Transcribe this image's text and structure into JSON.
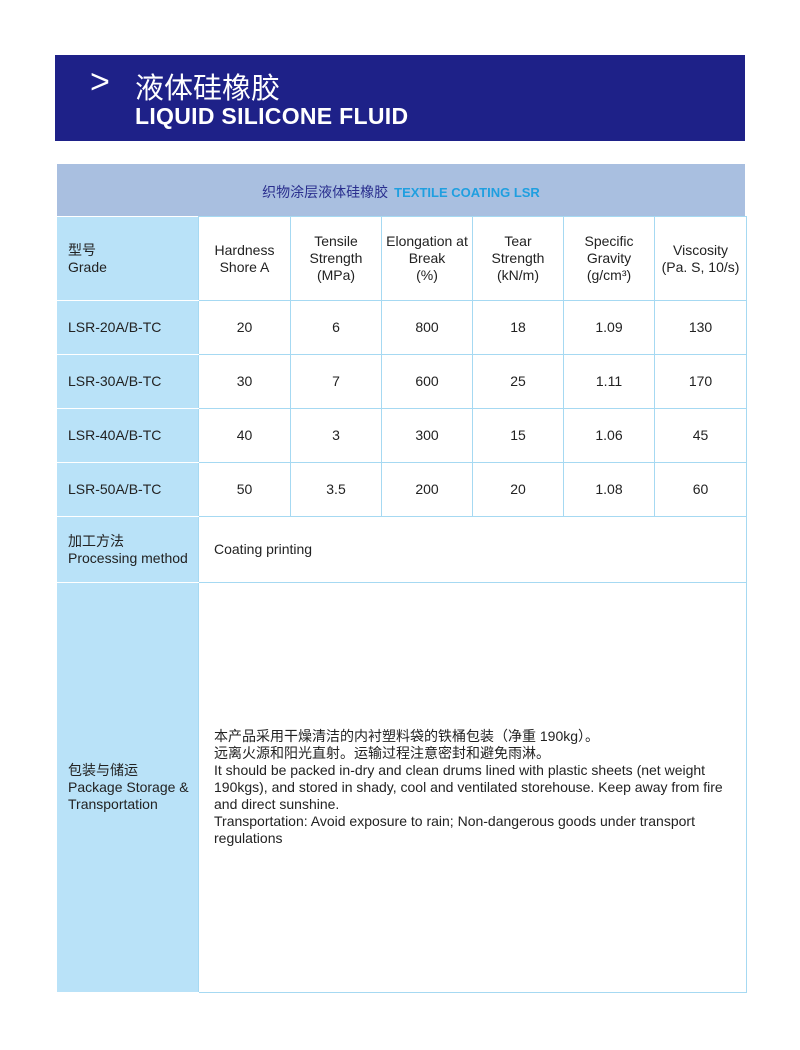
{
  "header": {
    "chevron_icon": "chevron-right",
    "title_cn": "液体硅橡胶",
    "title_en": "LIQUID SILICONE FLUID"
  },
  "section": {
    "title_cn": "织物涂层液体硅橡胶",
    "title_en": "TEXTILE COATING LSR"
  },
  "colors": {
    "banner": "#1e2188",
    "band": "#a9bfe0",
    "label_cell": "#b9e2f8",
    "accent": "#1f9fe0"
  },
  "table": {
    "headers": [
      [
        "型号",
        "Grade"
      ],
      [
        "Hardness",
        "Shore A"
      ],
      [
        "Tensile",
        "Strength",
        "(MPa)"
      ],
      [
        "Elongation at",
        "Break",
        "(%)"
      ],
      [
        "Tear",
        "Strength",
        "(kN/m)"
      ],
      [
        "Specific",
        "Gravity",
        "(g/cm³)"
      ],
      [
        "Viscosity",
        "(Pa. S, 10/s)"
      ]
    ],
    "rows": [
      [
        "LSR-20A/B-TC",
        "20",
        "6",
        "800",
        "18",
        "1.09",
        "130"
      ],
      [
        "LSR-30A/B-TC",
        "30",
        "7",
        "600",
        "25",
        "1.11",
        "170"
      ],
      [
        "LSR-40A/B-TC",
        "40",
        "3",
        "300",
        "15",
        "1.06",
        "45"
      ],
      [
        "LSR-50A/B-TC",
        "50",
        "3.5",
        "200",
        "20",
        "1.08",
        "60"
      ]
    ]
  },
  "processing": {
    "label": [
      "加工方法",
      "Processing method"
    ],
    "value": "Coating printing"
  },
  "package": {
    "label": [
      "包装与储运",
      "Package Storage &",
      "Transportation"
    ],
    "lines": [
      "本产品采用干燥清洁的内衬塑料袋的铁桶包装（净重 190kg）。",
      "远离火源和阳光直射。运输过程注意密封和避免雨淋。",
      "It should be packed in-dry and clean drums lined with plastic sheets (net weight 190kgs), and stored in shady, cool and ventilated storehouse. Keep away from fire and direct sunshine.",
      "Transportation: Avoid exposure to rain; Non-dangerous goods under transport regulations"
    ]
  }
}
